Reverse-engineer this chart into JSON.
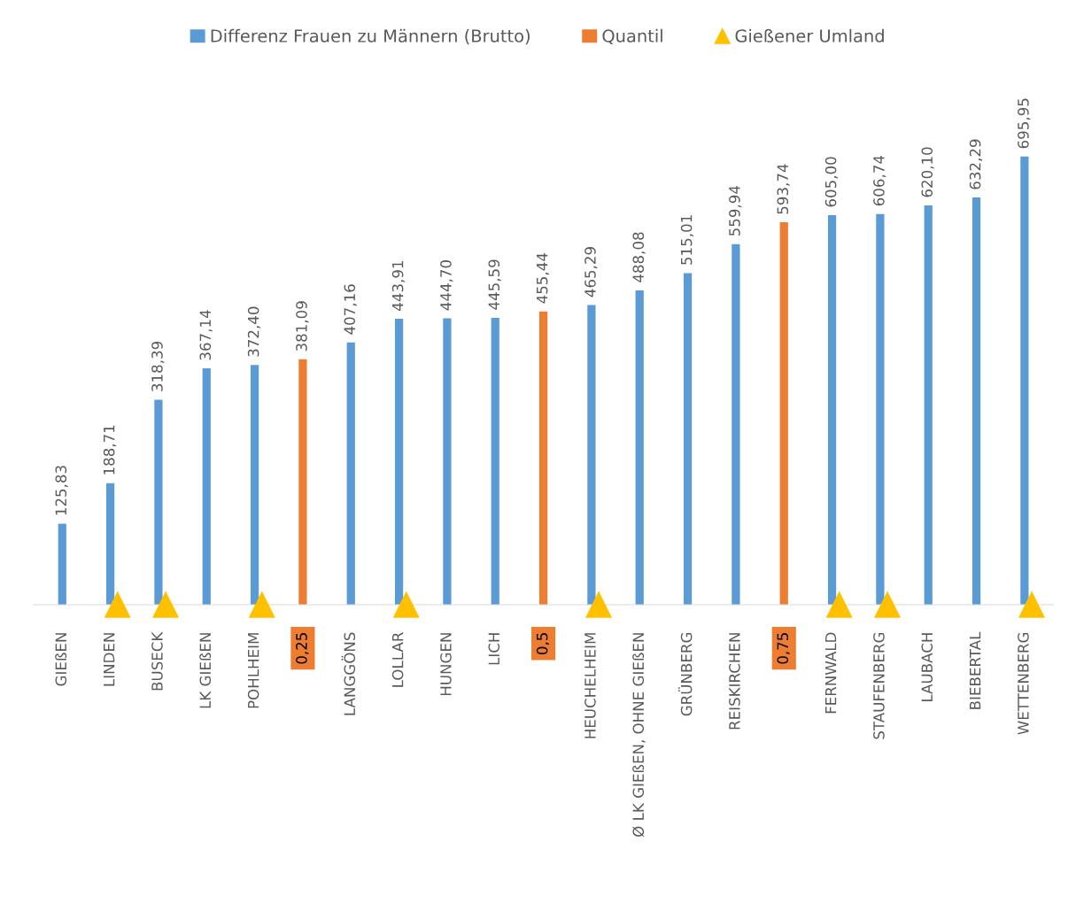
{
  "chart_data": {
    "type": "bar",
    "legend": "top",
    "categories": [
      "GIEßEN",
      "LINDEN",
      "BUSECK",
      "LK GIEßEN",
      "POHLHEIM",
      "0,25",
      "LANGGÖNS",
      "LOLLAR",
      "HUNGEN",
      "LICH",
      "0,5",
      "HEUCHELHEIM",
      "Ø LK GIEßEN, OHNE GIEßEN",
      "GRÜNBERG",
      "REISKIRCHEN",
      "0,75",
      "FERNWALD",
      "STAUFENBERG",
      "LAUBACH",
      "BIEBERTAL",
      "WETTENBERG"
    ],
    "series": [
      {
        "name": "Differenz Frauen zu Männern (Brutto)",
        "color": "#5b9bd5",
        "values": [
          125.83,
          188.71,
          318.39,
          367.14,
          372.4,
          null,
          407.16,
          443.91,
          444.7,
          445.59,
          null,
          465.29,
          488.08,
          515.01,
          559.94,
          null,
          605.0,
          606.74,
          620.1,
          632.29,
          695.95
        ],
        "value_labels": [
          "125,83",
          "188,71",
          "318,39",
          "367,14",
          "372,40",
          null,
          "407,16",
          "443,91",
          "444,70",
          "445,59",
          null,
          "465,29",
          "488,08",
          "515,01",
          "559,94",
          null,
          "605,00",
          "606,74",
          "620,10",
          "632,29",
          "695,95"
        ]
      },
      {
        "name": "Quantil",
        "color": "#ed7d31",
        "values": [
          null,
          null,
          null,
          null,
          null,
          381.09,
          null,
          null,
          null,
          null,
          455.44,
          null,
          null,
          null,
          null,
          593.74,
          null,
          null,
          null,
          null,
          null
        ],
        "value_labels": [
          null,
          null,
          null,
          null,
          null,
          "381,09",
          null,
          null,
          null,
          null,
          "455,44",
          null,
          null,
          null,
          null,
          "593,74",
          null,
          null,
          null,
          null,
          null
        ]
      },
      {
        "name": "Gießener Umland",
        "color": "#ffc000",
        "type": "scatter",
        "marker": "triangle",
        "values": [
          null,
          0,
          0,
          null,
          0,
          null,
          null,
          0,
          null,
          null,
          null,
          0,
          null,
          null,
          null,
          null,
          0,
          0,
          null,
          null,
          0
        ]
      }
    ]
  }
}
